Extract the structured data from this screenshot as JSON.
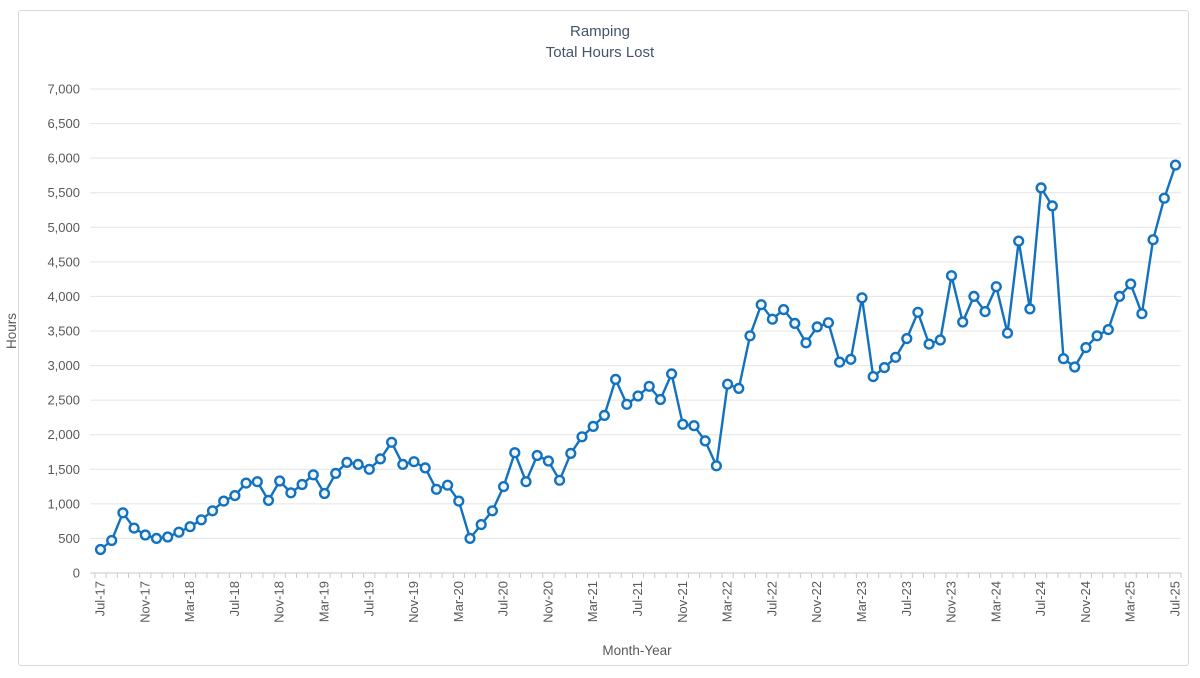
{
  "chart": {
    "title_line1": "Ramping",
    "title_line2": "Total Hours Lost",
    "y_axis_title": "Hours",
    "x_axis_title": "Month-Year"
  },
  "chart_data": {
    "type": "line",
    "title": "Ramping — Total Hours Lost",
    "xlabel": "Month-Year",
    "ylabel": "Hours",
    "ylim": [
      0,
      7000
    ],
    "y_tick_step": 500,
    "x_label_every": 4,
    "grid": "horizontal",
    "legend": "none",
    "x": [
      "Jul-17",
      "Aug-17",
      "Sep-17",
      "Oct-17",
      "Nov-17",
      "Dec-17",
      "Jan-18",
      "Feb-18",
      "Mar-18",
      "Apr-18",
      "May-18",
      "Jun-18",
      "Jul-18",
      "Aug-18",
      "Sep-18",
      "Oct-18",
      "Nov-18",
      "Dec-18",
      "Jan-19",
      "Feb-19",
      "Mar-19",
      "Apr-19",
      "May-19",
      "Jun-19",
      "Jul-19",
      "Aug-19",
      "Sep-19",
      "Oct-19",
      "Nov-19",
      "Dec-19",
      "Jan-20",
      "Feb-20",
      "Mar-20",
      "Apr-20",
      "May-20",
      "Jun-20",
      "Jul-20",
      "Aug-20",
      "Sep-20",
      "Oct-20",
      "Nov-20",
      "Dec-20",
      "Jan-21",
      "Feb-21",
      "Mar-21",
      "Apr-21",
      "May-21",
      "Jun-21",
      "Jul-21",
      "Aug-21",
      "Sep-21",
      "Oct-21",
      "Nov-21",
      "Dec-21",
      "Jan-22",
      "Feb-22",
      "Mar-22",
      "Apr-22",
      "May-22",
      "Jun-22",
      "Jul-22",
      "Aug-22",
      "Sep-22",
      "Oct-22",
      "Nov-22",
      "Dec-22",
      "Jan-23",
      "Feb-23",
      "Mar-23",
      "Apr-23",
      "May-23",
      "Jun-23",
      "Jul-23",
      "Aug-23",
      "Sep-23",
      "Oct-23",
      "Nov-23",
      "Dec-23",
      "Jan-24",
      "Feb-24",
      "Mar-24",
      "Apr-24",
      "May-24",
      "Jun-24",
      "Jul-24",
      "Aug-24",
      "Sep-24",
      "Oct-24",
      "Nov-24",
      "Dec-24",
      "Jan-25",
      "Feb-25",
      "Mar-25",
      "Apr-25",
      "May-25",
      "Jun-25",
      "Jul-25"
    ],
    "series": [
      {
        "name": "Total Hours Lost",
        "values": [
          340,
          470,
          870,
          650,
          550,
          500,
          520,
          590,
          670,
          770,
          900,
          1040,
          1120,
          1300,
          1320,
          1050,
          1330,
          1160,
          1280,
          1420,
          1150,
          1440,
          1600,
          1570,
          1500,
          1650,
          1890,
          1570,
          1610,
          1520,
          1210,
          1270,
          1040,
          500,
          700,
          900,
          1250,
          1740,
          1320,
          1700,
          1620,
          1340,
          1730,
          1970,
          2120,
          2280,
          2800,
          2440,
          2560,
          2700,
          2510,
          2880,
          2150,
          2130,
          1910,
          1550,
          2730,
          2670,
          3430,
          3880,
          3670,
          3810,
          3610,
          3330,
          3560,
          3620,
          3050,
          3090,
          3980,
          2840,
          2970,
          3120,
          3390,
          3770,
          3310,
          3370,
          4300,
          3630,
          4000,
          3780,
          4140,
          3470,
          4800,
          3820,
          5570,
          5310,
          3100,
          2980,
          3260,
          3430,
          3520,
          4000,
          4180,
          3750,
          4820,
          5420,
          5900
        ]
      }
    ],
    "colors": {
      "line": "#1272bf",
      "marker_fill": "#f3f6f9",
      "grid": "#e4e4e4",
      "axis": "#c3c9cf",
      "tick_text": "#595959",
      "title_text": "#44546a"
    }
  }
}
